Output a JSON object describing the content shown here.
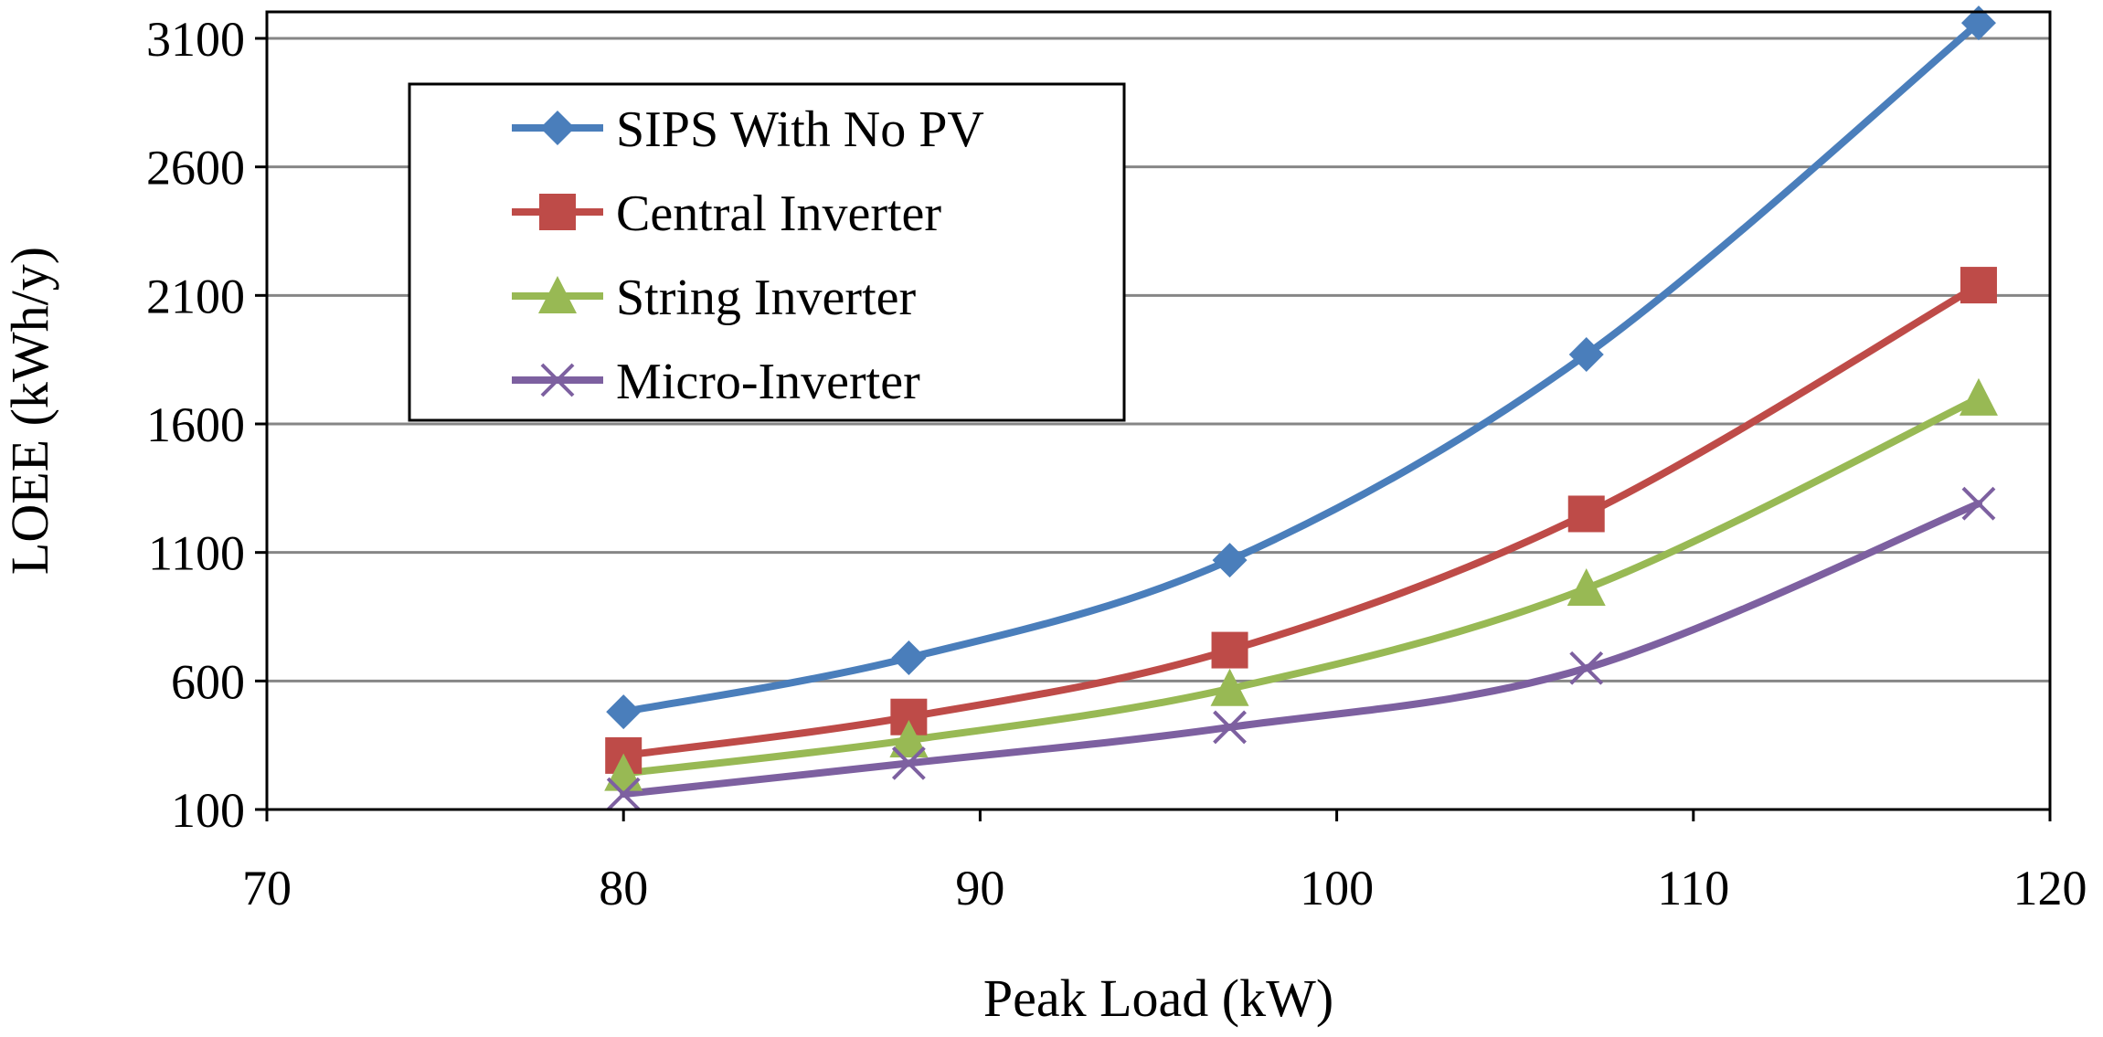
{
  "chart_data": {
    "type": "line",
    "title": "",
    "xlabel": "Peak Load (kW)",
    "ylabel": "LOEE (kWh/y)",
    "xlim": [
      70,
      120
    ],
    "ylim": [
      100,
      3200
    ],
    "xticks": [
      70,
      80,
      90,
      100,
      110,
      120
    ],
    "yticks": [
      100,
      600,
      1100,
      1600,
      2100,
      2600,
      3100
    ],
    "grid": "horizontal",
    "legend_position": "top-left",
    "x": [
      80,
      88,
      97,
      107,
      118
    ],
    "series": [
      {
        "name": "SIPS With No PV",
        "color": "#4a7ebb",
        "marker": "diamond",
        "values": [
          480,
          690,
          1070,
          1870,
          3160
        ]
      },
      {
        "name": "Central Inverter",
        "color": "#be4b48",
        "marker": "square",
        "values": [
          310,
          460,
          720,
          1250,
          2140
        ]
      },
      {
        "name": "String Inverter",
        "color": "#98b954",
        "marker": "triangle",
        "values": [
          240,
          370,
          570,
          960,
          1700
        ]
      },
      {
        "name": "Micro-Inverter",
        "color": "#7d60a0",
        "marker": "x",
        "values": [
          160,
          280,
          420,
          650,
          1290
        ]
      }
    ]
  }
}
